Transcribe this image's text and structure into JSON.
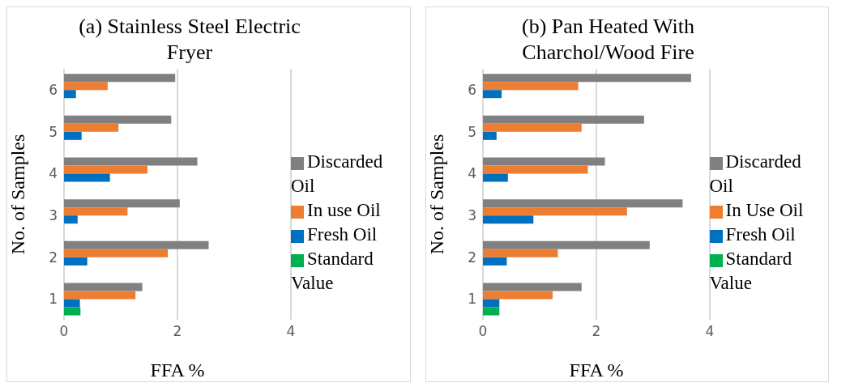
{
  "chart_data": [
    {
      "type": "bar",
      "orientation": "horizontal",
      "title": "(a) Stainless Steel Electric Fryer",
      "xlabel": "FFA %",
      "ylabel": "No. of Samples",
      "categories": [
        "6",
        "5",
        "4",
        "3",
        "2",
        "1"
      ],
      "series": [
        {
          "name": "Discarded Oil",
          "color": "#808080",
          "values": [
            1.96,
            1.89,
            2.35,
            2.04,
            2.55,
            1.38
          ]
        },
        {
          "name": "In use Oil",
          "color": "#ed7d31",
          "values": [
            0.77,
            0.96,
            1.47,
            1.12,
            1.83,
            1.26
          ]
        },
        {
          "name": "Fresh Oil",
          "color": "#0070c0",
          "values": [
            0.21,
            0.31,
            0.81,
            0.24,
            0.41,
            0.28
          ]
        },
        {
          "name": "Standard Value",
          "color": "#00b050",
          "values": [
            null,
            null,
            null,
            null,
            null,
            0.29
          ]
        }
      ],
      "xlim": [
        0,
        4
      ],
      "xticks": [
        0,
        2,
        4
      ],
      "grid": "x",
      "legend": "right"
    },
    {
      "type": "bar",
      "orientation": "horizontal",
      "title": "(b) Pan Heated With Charchol/Wood Fire",
      "xlabel": "FFA %",
      "ylabel": "No. of Samples",
      "categories": [
        "6",
        "5",
        "4",
        "3",
        "2",
        "1"
      ],
      "series": [
        {
          "name": "Discarded Oil",
          "color": "#808080",
          "values": [
            3.67,
            2.84,
            2.15,
            3.52,
            2.94,
            1.74
          ]
        },
        {
          "name": "In Use Oil",
          "color": "#ed7d31",
          "values": [
            1.68,
            1.74,
            1.85,
            2.54,
            1.32,
            1.23
          ]
        },
        {
          "name": "Fresh Oil",
          "color": "#0070c0",
          "values": [
            0.33,
            0.24,
            0.44,
            0.89,
            0.42,
            0.29
          ]
        },
        {
          "name": "Standard Value",
          "color": "#00b050",
          "values": [
            null,
            null,
            null,
            null,
            null,
            0.29
          ]
        }
      ],
      "xlim": [
        0,
        4
      ],
      "xticks": [
        0,
        2,
        4
      ],
      "grid": "x",
      "legend": "right"
    }
  ]
}
